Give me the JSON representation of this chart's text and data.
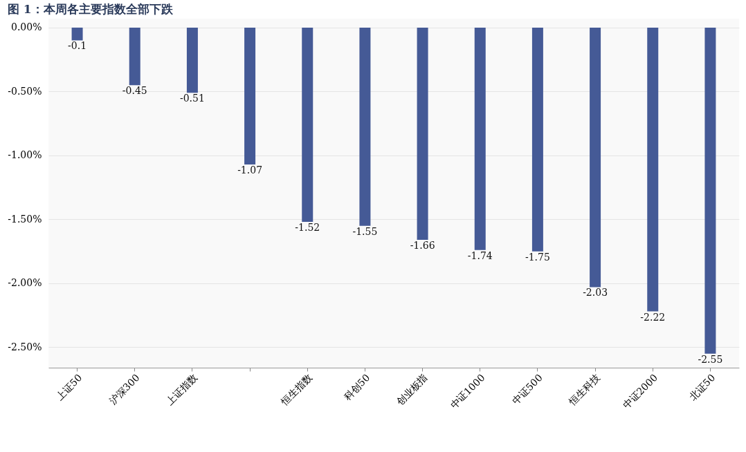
{
  "chart_data": {
    "type": "bar",
    "title": "图 1：本周各主要指数全部下跌",
    "categories": [
      "上证50",
      "沪深300",
      "上证指数",
      null,
      "恒生指数",
      "科创50",
      "创业板指",
      "中证1000",
      "中证500",
      "恒生科技",
      "中证2000",
      "北证50"
    ],
    "values": [
      -0.1,
      -0.45,
      -0.51,
      -1.07,
      -1.52,
      -1.55,
      -1.66,
      -1.74,
      -1.75,
      -2.03,
      -2.22,
      -2.55
    ],
    "color": "#455a96",
    "ylim": [
      -2.66,
      0.07
    ],
    "yticks": [
      {
        "value": 0,
        "label": "0.00%"
      },
      {
        "value": -0.5,
        "label": "-0.50%"
      },
      {
        "value": -1,
        "label": "-1.00%"
      },
      {
        "value": -1.5,
        "label": "-1.50%"
      },
      {
        "value": -2,
        "label": "-2.00%"
      },
      {
        "value": -2.5,
        "label": "-2.50%"
      }
    ],
    "grid": "y",
    "data_labels": true
  }
}
